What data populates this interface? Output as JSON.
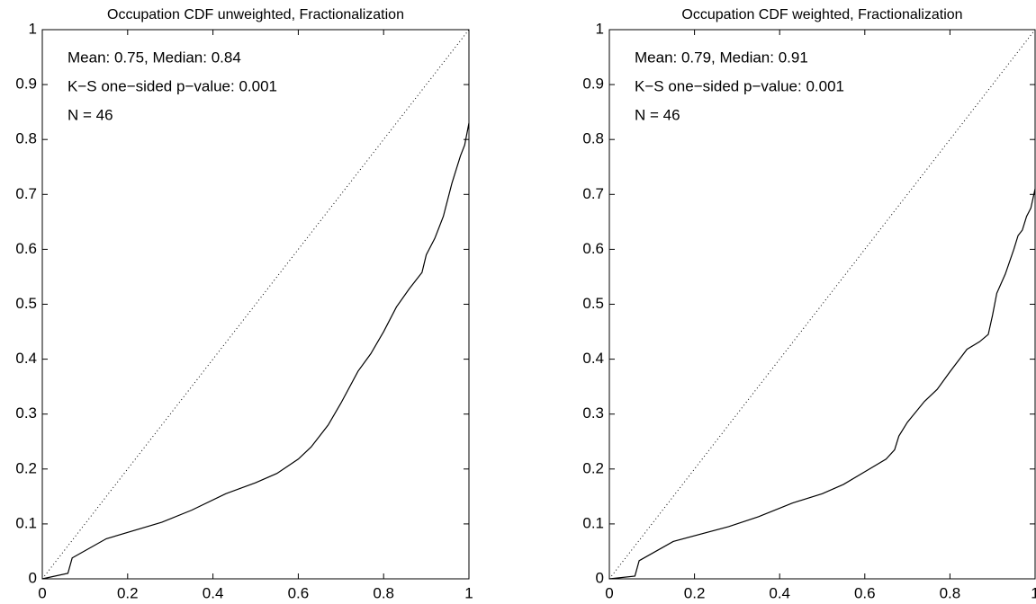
{
  "chart_data": [
    {
      "type": "line",
      "title": "Occupation CDF unweighted, Fractionalization",
      "annotations": [
        "Mean:  0.75,  Median:  0.84",
        "K−S one−sided p−value:  0.001",
        "N = 46"
      ],
      "x": [
        0,
        0.06,
        0.07,
        0.15,
        0.28,
        0.35,
        0.43,
        0.5,
        0.55,
        0.6,
        0.63,
        0.67,
        0.7,
        0.74,
        0.77,
        0.8,
        0.83,
        0.86,
        0.89,
        0.9,
        0.92,
        0.94,
        0.96,
        0.98,
        0.99,
        1
      ],
      "series": [
        {
          "color": "#000000",
          "values": [
            0,
            0.01,
            0.038,
            0.073,
            0.103,
            0.125,
            0.155,
            0.175,
            0.192,
            0.218,
            0.24,
            0.28,
            0.32,
            0.378,
            0.41,
            0.45,
            0.495,
            0.528,
            0.558,
            0.59,
            0.62,
            0.66,
            0.72,
            0.77,
            0.79,
            0.83
          ]
        }
      ],
      "xlim": [
        0,
        1
      ],
      "ylim": [
        0,
        1
      ],
      "xticks": [
        0,
        0.2,
        0.4,
        0.6,
        0.8,
        1
      ],
      "yticks": [
        0,
        0.1,
        0.2,
        0.3,
        0.4,
        0.5,
        0.6,
        0.7,
        0.8,
        0.9,
        1
      ]
    },
    {
      "type": "line",
      "title": "Occupation CDF weighted, Fractionalization",
      "annotations": [
        "Mean:  0.79,  Median:  0.91",
        "K−S one−sided p−value:  0.001",
        "N = 46"
      ],
      "x": [
        0,
        0.06,
        0.07,
        0.15,
        0.28,
        0.35,
        0.43,
        0.5,
        0.55,
        0.6,
        0.65,
        0.67,
        0.68,
        0.7,
        0.74,
        0.77,
        0.8,
        0.84,
        0.87,
        0.89,
        0.9,
        0.91,
        0.93,
        0.95,
        0.96,
        0.97,
        0.98,
        0.99,
        1
      ],
      "series": [
        {
          "color": "#000000",
          "values": [
            0,
            0.005,
            0.033,
            0.068,
            0.095,
            0.113,
            0.138,
            0.155,
            0.172,
            0.195,
            0.218,
            0.235,
            0.26,
            0.285,
            0.323,
            0.345,
            0.377,
            0.418,
            0.432,
            0.445,
            0.48,
            0.52,
            0.555,
            0.6,
            0.625,
            0.635,
            0.66,
            0.675,
            0.71
          ]
        }
      ],
      "xlim": [
        0,
        1
      ],
      "ylim": [
        0,
        1
      ],
      "xticks": [
        0,
        0.2,
        0.4,
        0.6,
        0.8,
        1
      ],
      "yticks": [
        0,
        0.1,
        0.2,
        0.3,
        0.4,
        0.5,
        0.6,
        0.7,
        0.8,
        0.9,
        1
      ]
    }
  ]
}
